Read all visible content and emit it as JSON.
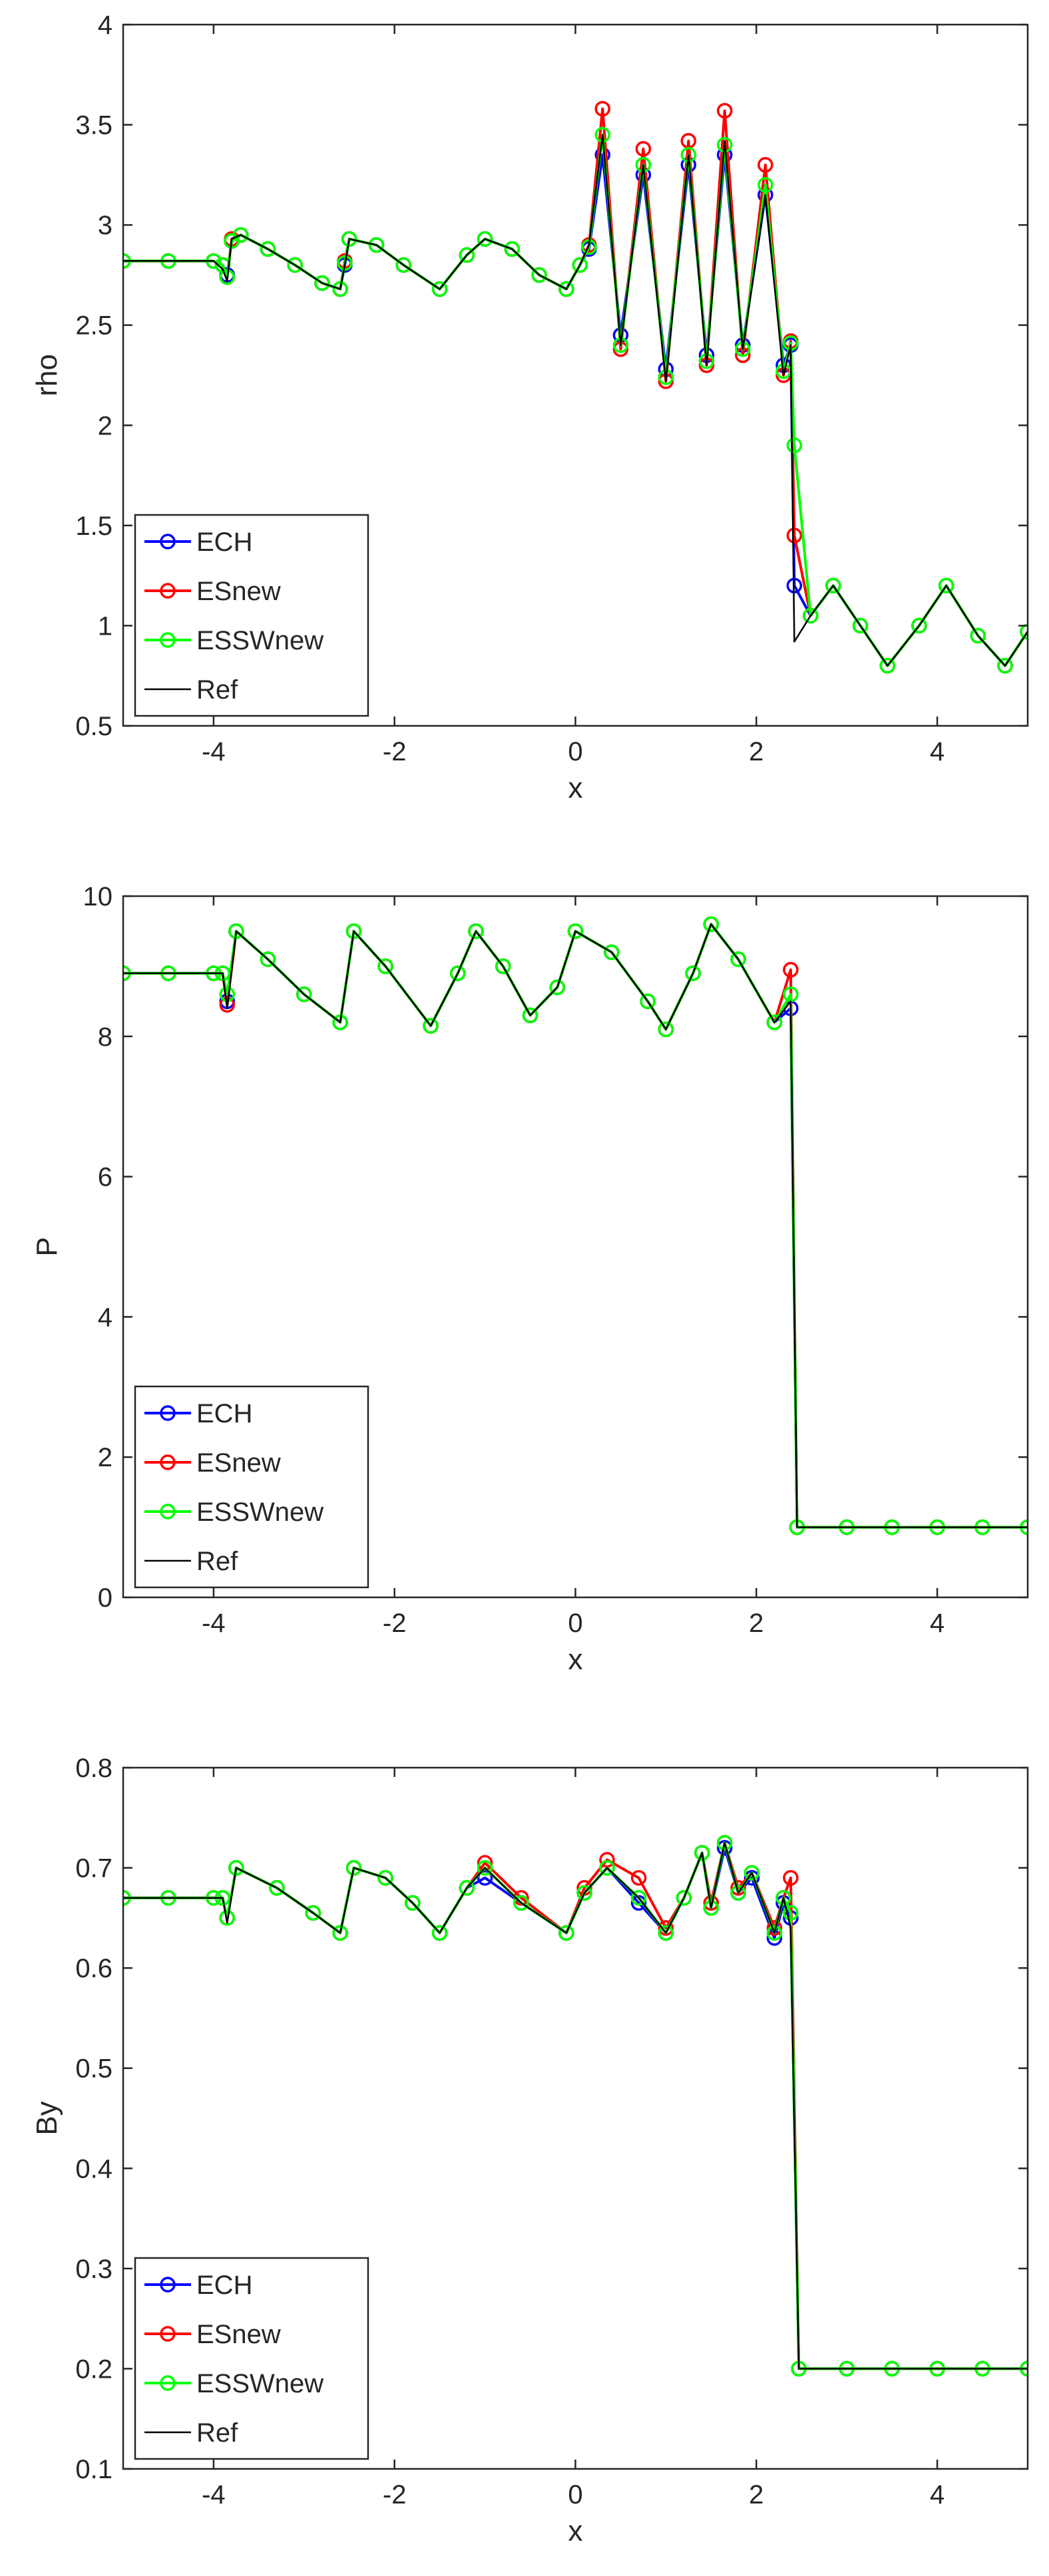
{
  "chart_data": [
    {
      "type": "line",
      "xlabel": "x",
      "ylabel": "rho",
      "legend": "lower left",
      "grid": false,
      "xlim": [
        -5,
        5
      ],
      "xticks": [
        -4,
        -2,
        0,
        2,
        4
      ],
      "ylim": [
        0.5,
        4
      ],
      "yticks": [
        0.5,
        1,
        1.5,
        2,
        2.5,
        3,
        3.5,
        4
      ],
      "x": [
        -5,
        -4.5,
        -4,
        -3.9,
        -3.85,
        -3.8,
        -3.7,
        -3.4,
        -3.1,
        -2.8,
        -2.6,
        -2.55,
        -2.5,
        -2.2,
        -1.9,
        -1.5,
        -1.2,
        -1.0,
        -0.7,
        -0.4,
        -0.1,
        0.05,
        0.15,
        0.3,
        0.5,
        0.75,
        1.0,
        1.25,
        1.45,
        1.65,
        1.85,
        2.1,
        2.3,
        2.38,
        2.42,
        2.6,
        2.85,
        3.15,
        3.45,
        3.8,
        4.1,
        4.45,
        4.75,
        5.0
      ],
      "series": [
        {
          "name": "ECH",
          "color": "#0000ff",
          "marker": "o",
          "values": [
            2.82,
            2.82,
            2.82,
            2.8,
            2.75,
            2.92,
            2.95,
            2.88,
            2.8,
            2.71,
            2.68,
            2.8,
            2.93,
            2.9,
            2.8,
            2.68,
            2.85,
            2.93,
            2.88,
            2.75,
            2.68,
            2.8,
            2.88,
            3.35,
            2.45,
            3.25,
            2.28,
            3.3,
            2.35,
            3.35,
            2.4,
            3.15,
            2.3,
            2.4,
            1.2,
            1.05,
            1.2,
            1.0,
            0.8,
            1.0,
            1.2,
            0.95,
            0.8,
            0.97
          ]
        },
        {
          "name": "ESnew",
          "color": "#ff0000",
          "marker": "o",
          "values": [
            2.82,
            2.82,
            2.82,
            2.8,
            2.74,
            2.93,
            2.95,
            2.88,
            2.8,
            2.71,
            2.68,
            2.82,
            2.93,
            2.9,
            2.8,
            2.68,
            2.85,
            2.93,
            2.88,
            2.75,
            2.68,
            2.8,
            2.9,
            3.58,
            2.38,
            3.38,
            2.22,
            3.42,
            2.3,
            3.57,
            2.35,
            3.3,
            2.25,
            2.42,
            1.45,
            1.05,
            1.2,
            1.0,
            0.8,
            1.0,
            1.2,
            0.95,
            0.8,
            0.97
          ]
        },
        {
          "name": "ESSWnew",
          "color": "#00ff00",
          "marker": "o",
          "values": [
            2.82,
            2.82,
            2.82,
            2.8,
            2.74,
            2.92,
            2.95,
            2.88,
            2.8,
            2.71,
            2.68,
            2.81,
            2.93,
            2.9,
            2.8,
            2.68,
            2.85,
            2.93,
            2.88,
            2.75,
            2.68,
            2.8,
            2.89,
            3.45,
            2.4,
            3.3,
            2.24,
            3.35,
            2.32,
            3.4,
            2.38,
            3.2,
            2.27,
            2.41,
            1.9,
            1.05,
            1.2,
            1.0,
            0.8,
            1.0,
            1.2,
            0.95,
            0.8,
            0.97
          ]
        },
        {
          "name": "Ref",
          "color": "#000000",
          "values": [
            2.82,
            2.82,
            2.82,
            2.78,
            2.72,
            2.93,
            2.95,
            2.88,
            2.8,
            2.71,
            2.68,
            2.8,
            2.93,
            2.9,
            2.8,
            2.68,
            2.85,
            2.93,
            2.88,
            2.75,
            2.68,
            2.8,
            2.9,
            3.45,
            2.4,
            3.3,
            2.22,
            3.35,
            2.3,
            3.42,
            2.38,
            3.15,
            2.25,
            2.4,
            0.92,
            1.05,
            1.2,
            1.0,
            0.8,
            1.0,
            1.2,
            0.95,
            0.8,
            0.97
          ]
        }
      ]
    },
    {
      "type": "line",
      "xlabel": "x",
      "ylabel": "P",
      "legend": "lower left",
      "grid": false,
      "xlim": [
        -5,
        5
      ],
      "xticks": [
        -4,
        -2,
        0,
        2,
        4
      ],
      "ylim": [
        0,
        10
      ],
      "yticks": [
        0,
        2,
        4,
        6,
        8,
        10
      ],
      "x": [
        -5,
        -4.5,
        -4,
        -3.9,
        -3.85,
        -3.75,
        -3.4,
        -3,
        -2.6,
        -2.45,
        -2.1,
        -1.6,
        -1.3,
        -1.1,
        -0.8,
        -0.5,
        -0.2,
        0,
        0.4,
        0.8,
        1.0,
        1.3,
        1.5,
        1.8,
        2.2,
        2.38,
        2.45,
        3,
        3.5,
        4,
        4.5,
        5
      ],
      "series": [
        {
          "name": "ECH",
          "color": "#0000ff",
          "marker": "o",
          "values": [
            8.9,
            8.9,
            8.9,
            8.9,
            8.5,
            9.5,
            9.1,
            8.6,
            8.2,
            9.5,
            9.0,
            8.15,
            8.9,
            9.5,
            9.0,
            8.3,
            8.7,
            9.5,
            9.2,
            8.5,
            8.1,
            8.9,
            9.6,
            9.1,
            8.2,
            8.4,
            1.0,
            1,
            1,
            1,
            1,
            1
          ]
        },
        {
          "name": "ESnew",
          "color": "#ff0000",
          "marker": "o",
          "values": [
            8.9,
            8.9,
            8.9,
            8.9,
            8.45,
            9.5,
            9.1,
            8.6,
            8.2,
            9.5,
            9.0,
            8.15,
            8.9,
            9.5,
            9.0,
            8.3,
            8.7,
            9.5,
            9.2,
            8.5,
            8.1,
            8.9,
            9.6,
            9.1,
            8.2,
            8.95,
            1.0,
            1,
            1,
            1,
            1,
            1
          ]
        },
        {
          "name": "ESSWnew",
          "color": "#00ff00",
          "marker": "o",
          "values": [
            8.9,
            8.9,
            8.9,
            8.9,
            8.6,
            9.5,
            9.1,
            8.6,
            8.2,
            9.5,
            9.0,
            8.15,
            8.9,
            9.5,
            9.0,
            8.3,
            8.7,
            9.5,
            9.2,
            8.5,
            8.1,
            8.9,
            9.6,
            9.1,
            8.2,
            8.6,
            1.0,
            1,
            1,
            1,
            1,
            1
          ]
        },
        {
          "name": "Ref",
          "color": "#000000",
          "values": [
            8.9,
            8.9,
            8.9,
            8.9,
            8.4,
            9.5,
            9.1,
            8.6,
            8.2,
            9.5,
            9.0,
            8.15,
            8.9,
            9.5,
            9.0,
            8.3,
            8.7,
            9.5,
            9.2,
            8.5,
            8.1,
            8.9,
            9.6,
            9.1,
            8.2,
            8.5,
            1.0,
            1,
            1,
            1,
            1,
            1
          ]
        }
      ]
    },
    {
      "type": "line",
      "xlabel": "x",
      "ylabel": "By",
      "legend": "lower left",
      "grid": false,
      "xlim": [
        -5,
        5
      ],
      "xticks": [
        -4,
        -2,
        0,
        2,
        4
      ],
      "ylim": [
        0.1,
        0.8
      ],
      "yticks": [
        0.1,
        0.2,
        0.3,
        0.4,
        0.5,
        0.6,
        0.7,
        0.8
      ],
      "x": [
        -5,
        -4.5,
        -4,
        -3.9,
        -3.85,
        -3.75,
        -3.3,
        -2.9,
        -2.6,
        -2.45,
        -2.1,
        -1.8,
        -1.5,
        -1.2,
        -1.0,
        -0.6,
        -0.1,
        0.1,
        0.35,
        0.7,
        1.0,
        1.2,
        1.4,
        1.5,
        1.65,
        1.8,
        1.95,
        2.2,
        2.3,
        2.38,
        2.47,
        3,
        3.5,
        4,
        4.5,
        5
      ],
      "series": [
        {
          "name": "ECH",
          "color": "#0000ff",
          "marker": "o",
          "values": [
            0.67,
            0.67,
            0.67,
            0.67,
            0.65,
            0.7,
            0.68,
            0.655,
            0.635,
            0.7,
            0.69,
            0.665,
            0.635,
            0.68,
            0.69,
            0.665,
            0.635,
            0.675,
            0.7,
            0.665,
            0.635,
            0.67,
            0.715,
            0.66,
            0.72,
            0.675,
            0.69,
            0.63,
            0.665,
            0.65,
            0.2,
            0.2,
            0.2,
            0.2,
            0.2,
            0.2
          ]
        },
        {
          "name": "ESnew",
          "color": "#ff0000",
          "marker": "o",
          "values": [
            0.67,
            0.67,
            0.67,
            0.67,
            0.65,
            0.7,
            0.68,
            0.655,
            0.635,
            0.7,
            0.69,
            0.665,
            0.635,
            0.68,
            0.705,
            0.67,
            0.635,
            0.68,
            0.708,
            0.69,
            0.64,
            0.67,
            0.715,
            0.665,
            0.725,
            0.68,
            0.695,
            0.64,
            0.67,
            0.69,
            0.2,
            0.2,
            0.2,
            0.2,
            0.2,
            0.2
          ]
        },
        {
          "name": "ESSWnew",
          "color": "#00ff00",
          "marker": "o",
          "values": [
            0.67,
            0.67,
            0.67,
            0.67,
            0.65,
            0.7,
            0.68,
            0.655,
            0.635,
            0.7,
            0.69,
            0.665,
            0.635,
            0.68,
            0.7,
            0.665,
            0.635,
            0.675,
            0.7,
            0.67,
            0.635,
            0.67,
            0.715,
            0.66,
            0.725,
            0.675,
            0.695,
            0.635,
            0.67,
            0.655,
            0.2,
            0.2,
            0.2,
            0.2,
            0.2,
            0.2
          ]
        },
        {
          "name": "Ref",
          "color": "#000000",
          "values": [
            0.67,
            0.67,
            0.67,
            0.67,
            0.645,
            0.7,
            0.68,
            0.655,
            0.635,
            0.7,
            0.69,
            0.665,
            0.635,
            0.68,
            0.7,
            0.665,
            0.635,
            0.675,
            0.7,
            0.67,
            0.635,
            0.67,
            0.715,
            0.66,
            0.725,
            0.675,
            0.695,
            0.635,
            0.67,
            0.64,
            0.2,
            0.2,
            0.2,
            0.2,
            0.2,
            0.2
          ]
        }
      ]
    }
  ]
}
